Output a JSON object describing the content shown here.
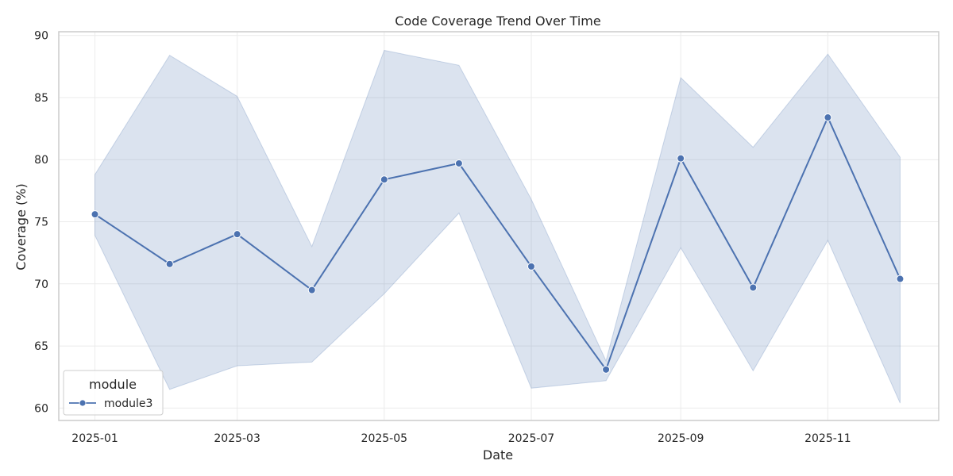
{
  "chart_data": {
    "type": "line",
    "title": "Code Coverage Trend Over Time",
    "xlabel": "Date",
    "ylabel": "Coverage (%)",
    "x": [
      "2025-01-01",
      "2025-02-01",
      "2025-03-01",
      "2025-04-01",
      "2025-05-01",
      "2025-06-01",
      "2025-07-01",
      "2025-08-01",
      "2025-09-01",
      "2025-10-01",
      "2025-11-01",
      "2025-12-01"
    ],
    "x_ticks": [
      "2025-01-01",
      "2025-03-01",
      "2025-05-01",
      "2025-07-01",
      "2025-09-01",
      "2025-11-01"
    ],
    "x_tick_labels": [
      "2025-01",
      "2025-03",
      "2025-05",
      "2025-07",
      "2025-09",
      "2025-11"
    ],
    "x_range": [
      "2024-12-17",
      "2025-12-17"
    ],
    "ylim": [
      59,
      90.3
    ],
    "y_ticks": [
      60,
      65,
      70,
      75,
      80,
      85,
      90
    ],
    "grid": true,
    "legend": {
      "title": "module",
      "position": "bottom-left"
    },
    "series": [
      {
        "name": "module3",
        "color": "#4c72b0",
        "values": [
          75.6,
          71.6,
          74.0,
          69.5,
          78.4,
          79.7,
          71.4,
          63.1,
          80.1,
          69.7,
          83.4,
          70.4
        ],
        "band_upper": [
          78.8,
          88.4,
          85.1,
          73.0,
          88.8,
          87.6,
          76.8,
          63.8,
          86.6,
          81.0,
          88.5,
          80.2
        ],
        "band_lower": [
          73.9,
          61.5,
          63.4,
          63.7,
          69.2,
          75.7,
          61.6,
          62.2,
          72.9,
          63.0,
          73.5,
          60.4
        ]
      }
    ]
  }
}
